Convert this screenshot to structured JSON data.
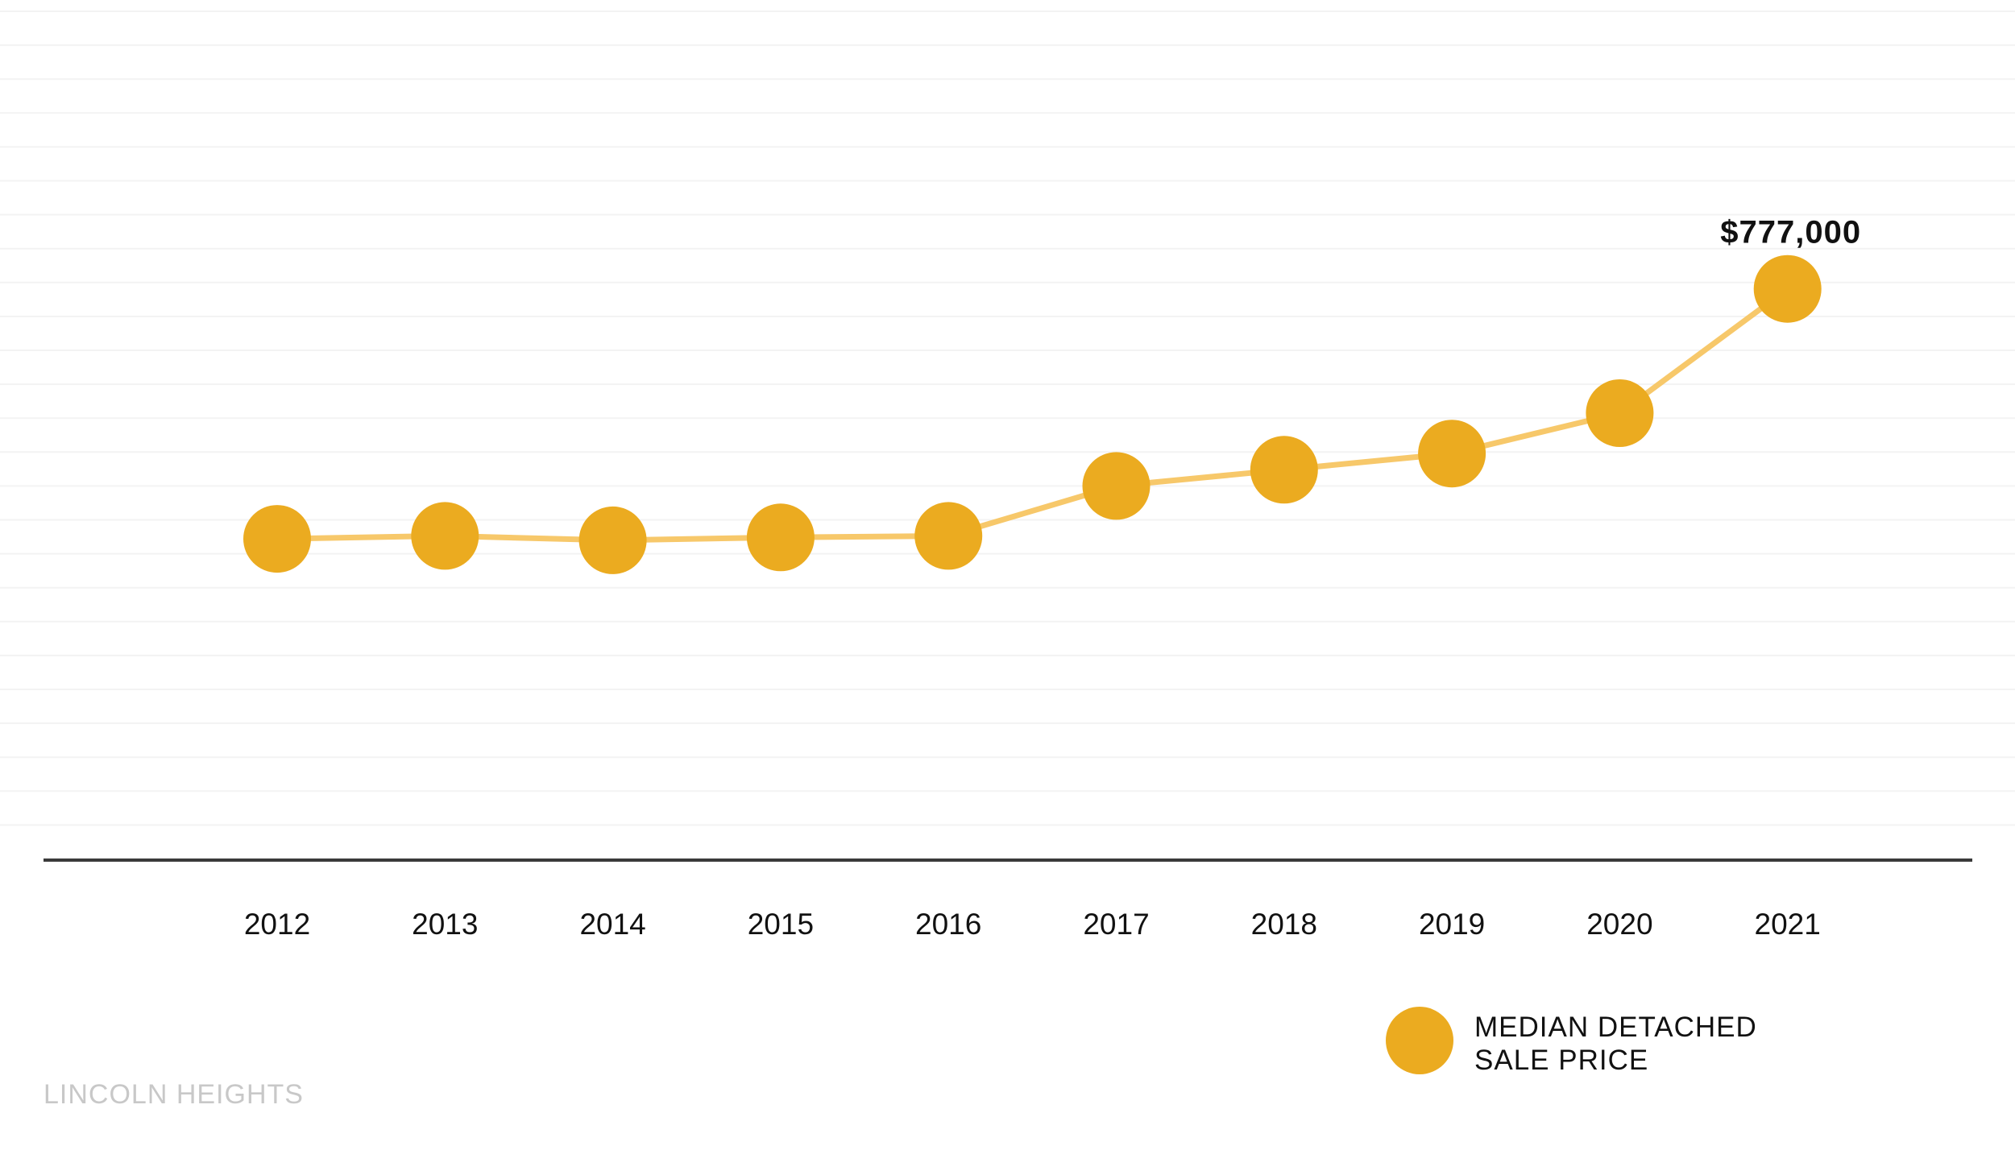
{
  "chart_data": {
    "type": "line",
    "categories": [
      "2012",
      "2013",
      "2014",
      "2015",
      "2016",
      "2017",
      "2018",
      "2019",
      "2020",
      "2021"
    ],
    "series": [
      {
        "name": "MEDIAN DETACHED SALE PRICE",
        "values": [
          437000,
          441000,
          435000,
          439000,
          441000,
          509000,
          531000,
          553000,
          608000,
          777000
        ],
        "color": "#ebab20",
        "line_color": "#f7c86a"
      }
    ],
    "data_labels": [
      {
        "index": 9,
        "text": "$777,000"
      }
    ],
    "ylim": [
      0,
      1170000
    ],
    "grid": "horizontal",
    "legend": {
      "position": "bottom-right",
      "lines": [
        "MEDIAN DETACHED",
        "SALE PRICE"
      ]
    }
  },
  "footer": {
    "neighborhood": "LINCOLN HEIGHTS"
  }
}
